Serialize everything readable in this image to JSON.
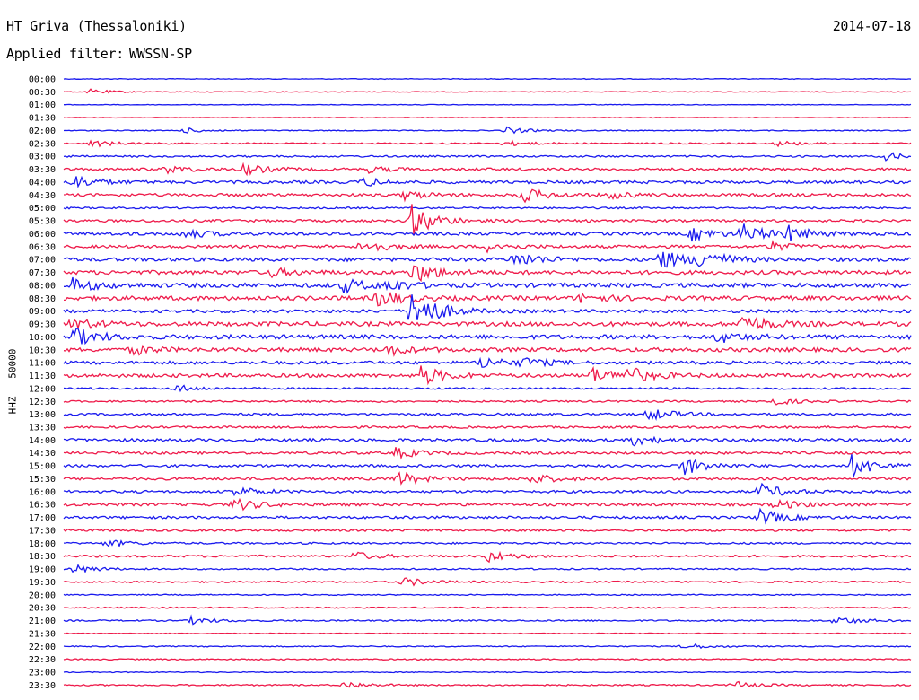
{
  "header": {
    "station": "HT Griva (Thessaloniki)",
    "date": "2014-07-18",
    "filter_label": "Applied filter:",
    "filter_value": "WWSSN-SP"
  },
  "channel_label": "HHZ - 50000",
  "colors": {
    "blue": "#1a1aee",
    "red": "#ee1a4a"
  },
  "chart_data": {
    "type": "line",
    "title": "",
    "ylabel": "HHZ - 50000",
    "row_interval_minutes": 30,
    "color_cycle": [
      "blue",
      "red"
    ],
    "row_labels": [
      "00:00",
      "00:30",
      "01:00",
      "01:30",
      "02:00",
      "02:30",
      "03:00",
      "03:30",
      "04:00",
      "04:30",
      "05:00",
      "05:30",
      "06:00",
      "06:30",
      "07:00",
      "07:30",
      "08:00",
      "08:30",
      "09:00",
      "09:30",
      "10:00",
      "10:30",
      "11:00",
      "11:30",
      "12:00",
      "12:30",
      "13:00",
      "13:30",
      "14:00",
      "14:30",
      "15:00",
      "15:30",
      "16:00",
      "16:30",
      "17:00",
      "17:30",
      "18:00",
      "18:30",
      "19:00",
      "19:30",
      "20:00",
      "20:30",
      "21:00",
      "21:30",
      "22:00",
      "22:30",
      "23:00",
      "23:30"
    ],
    "noise_levels": [
      0.4,
      0.4,
      0.35,
      0.35,
      0.5,
      0.8,
      1.0,
      1.4,
      1.6,
      1.6,
      1.0,
      1.4,
      1.7,
      1.6,
      2.0,
      2.2,
      2.4,
      2.4,
      1.8,
      2.4,
      2.4,
      2.2,
      1.8,
      2.0,
      1.0,
      1.0,
      1.2,
      1.2,
      1.6,
      1.4,
      1.4,
      1.4,
      1.4,
      1.6,
      1.4,
      1.2,
      1.0,
      1.2,
      0.8,
      0.9,
      0.6,
      0.7,
      0.8,
      0.5,
      0.6,
      0.7,
      0.5,
      0.8
    ],
    "events": [
      {
        "row": 1,
        "t": 0.03,
        "amp": 3
      },
      {
        "row": 4,
        "t": 0.14,
        "amp": 3
      },
      {
        "row": 4,
        "t": 0.52,
        "amp": 4
      },
      {
        "row": 5,
        "t": 0.03,
        "amp": 4
      },
      {
        "row": 5,
        "t": 0.52,
        "amp": 3
      },
      {
        "row": 5,
        "t": 0.84,
        "amp": 3
      },
      {
        "row": 6,
        "t": 0.97,
        "amp": 4
      },
      {
        "row": 7,
        "t": 0.12,
        "amp": 4
      },
      {
        "row": 7,
        "t": 0.21,
        "amp": 6
      },
      {
        "row": 7,
        "t": 0.36,
        "amp": 3
      },
      {
        "row": 8,
        "t": 0.01,
        "amp": 8
      },
      {
        "row": 8,
        "t": 0.35,
        "amp": 5
      },
      {
        "row": 9,
        "t": 0.4,
        "amp": 5
      },
      {
        "row": 9,
        "t": 0.54,
        "amp": 8
      },
      {
        "row": 9,
        "t": 0.64,
        "amp": 4
      },
      {
        "row": 11,
        "t": 0.41,
        "amp": 18
      },
      {
        "row": 12,
        "t": 0.14,
        "amp": 5
      },
      {
        "row": 12,
        "t": 0.74,
        "amp": 8
      },
      {
        "row": 12,
        "t": 0.8,
        "amp": 10
      },
      {
        "row": 12,
        "t": 0.85,
        "amp": 9
      },
      {
        "row": 13,
        "t": 0.35,
        "amp": 8
      },
      {
        "row": 13,
        "t": 0.5,
        "amp": 5
      },
      {
        "row": 13,
        "t": 0.83,
        "amp": 5
      },
      {
        "row": 14,
        "t": 0.53,
        "amp": 9
      },
      {
        "row": 14,
        "t": 0.7,
        "amp": 12
      },
      {
        "row": 14,
        "t": 0.75,
        "amp": 11
      },
      {
        "row": 15,
        "t": 0.24,
        "amp": 5
      },
      {
        "row": 15,
        "t": 0.41,
        "amp": 12
      },
      {
        "row": 16,
        "t": 0.01,
        "amp": 7
      },
      {
        "row": 16,
        "t": 0.33,
        "amp": 7
      },
      {
        "row": 16,
        "t": 0.38,
        "amp": 6
      },
      {
        "row": 17,
        "t": 0.37,
        "amp": 9
      },
      {
        "row": 17,
        "t": 0.61,
        "amp": 5
      },
      {
        "row": 18,
        "t": 0.41,
        "amp": 28
      },
      {
        "row": 19,
        "t": 0.01,
        "amp": 6
      },
      {
        "row": 19,
        "t": 0.8,
        "amp": 11
      },
      {
        "row": 20,
        "t": 0.01,
        "amp": 10
      },
      {
        "row": 20,
        "t": 0.77,
        "amp": 6
      },
      {
        "row": 21,
        "t": 0.38,
        "amp": 6
      },
      {
        "row": 21,
        "t": 0.08,
        "amp": 5
      },
      {
        "row": 22,
        "t": 0.49,
        "amp": 7
      },
      {
        "row": 22,
        "t": 0.54,
        "amp": 5
      },
      {
        "row": 23,
        "t": 0.42,
        "amp": 11
      },
      {
        "row": 23,
        "t": 0.62,
        "amp": 9
      },
      {
        "row": 23,
        "t": 0.66,
        "amp": 10
      },
      {
        "row": 24,
        "t": 0.13,
        "amp": 4
      },
      {
        "row": 25,
        "t": 0.83,
        "amp": 5
      },
      {
        "row": 26,
        "t": 0.69,
        "amp": 7
      },
      {
        "row": 28,
        "t": 0.67,
        "amp": 6
      },
      {
        "row": 29,
        "t": 0.39,
        "amp": 6
      },
      {
        "row": 30,
        "t": 0.73,
        "amp": 11
      },
      {
        "row": 30,
        "t": 0.93,
        "amp": 12
      },
      {
        "row": 31,
        "t": 0.39,
        "amp": 9
      },
      {
        "row": 31,
        "t": 0.55,
        "amp": 6
      },
      {
        "row": 32,
        "t": 0.2,
        "amp": 6
      },
      {
        "row": 32,
        "t": 0.82,
        "amp": 9
      },
      {
        "row": 33,
        "t": 0.2,
        "amp": 7
      },
      {
        "row": 33,
        "t": 0.84,
        "amp": 5
      },
      {
        "row": 34,
        "t": 0.82,
        "amp": 9
      },
      {
        "row": 36,
        "t": 0.05,
        "amp": 4
      },
      {
        "row": 37,
        "t": 0.34,
        "amp": 5
      },
      {
        "row": 37,
        "t": 0.5,
        "amp": 6
      },
      {
        "row": 38,
        "t": 0.01,
        "amp": 5
      },
      {
        "row": 39,
        "t": 0.4,
        "amp": 5
      },
      {
        "row": 42,
        "t": 0.15,
        "amp": 4
      },
      {
        "row": 42,
        "t": 0.91,
        "amp": 5
      },
      {
        "row": 44,
        "t": 0.73,
        "amp": 4
      },
      {
        "row": 47,
        "t": 0.33,
        "amp": 4
      },
      {
        "row": 47,
        "t": 0.79,
        "amp": 4
      }
    ]
  }
}
